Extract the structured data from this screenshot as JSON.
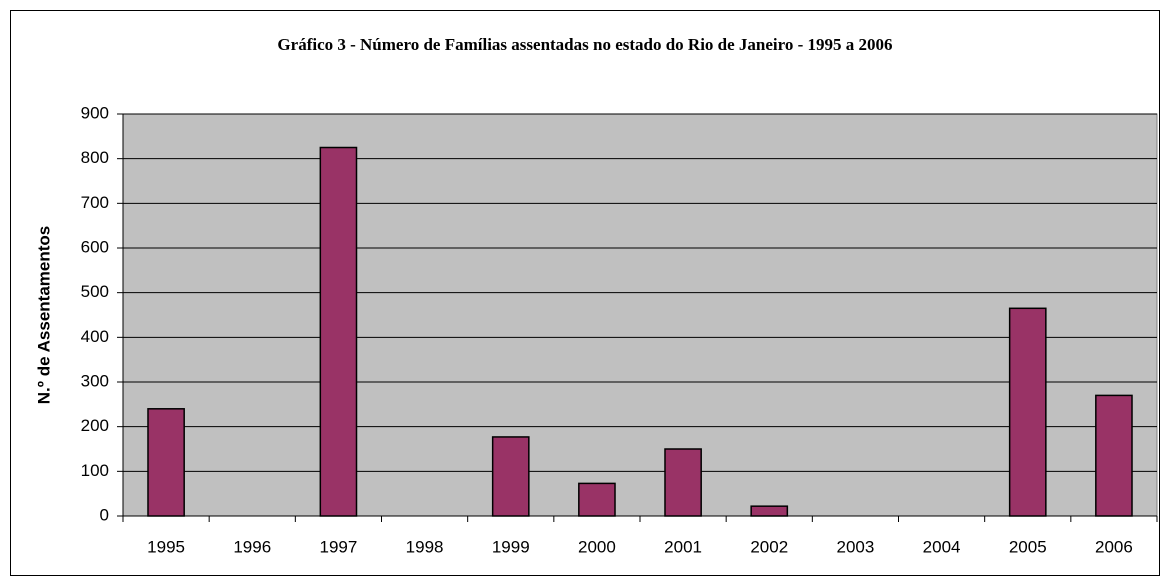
{
  "chart_data": {
    "type": "bar",
    "title": "Gráfico 3 - Número de Famílias assentadas no estado do Rio de Janeiro - 1995 a 2006",
    "y_label": "N.º de Assentamentos",
    "categories": [
      "1995",
      "1996",
      "1997",
      "1998",
      "1999",
      "2000",
      "2001",
      "2002",
      "2003",
      "2004",
      "2005",
      "2006"
    ],
    "values": [
      240,
      0,
      825,
      0,
      177,
      73,
      150,
      22,
      0,
      0,
      465,
      270
    ],
    "color": "#993366",
    "ylim": [
      0,
      900
    ],
    "yticks": [
      0,
      100,
      200,
      300,
      400,
      500,
      600,
      700,
      800,
      900
    ],
    "grid": true
  }
}
